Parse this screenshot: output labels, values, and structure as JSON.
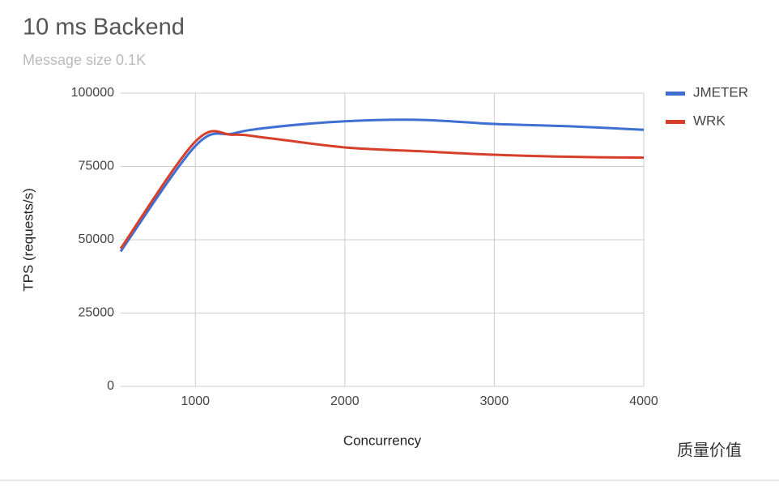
{
  "chart_data": {
    "type": "line",
    "title": "10 ms Backend",
    "subtitle": "Message size 0.1K",
    "x_label": "Concurrency",
    "y_label": "TPS (requests/s)",
    "x": [
      500,
      1000,
      1250,
      1500,
      2000,
      2500,
      3000,
      3500,
      4000
    ],
    "series": [
      {
        "name": "JMETER",
        "color": "#3f6fd1",
        "values": [
          46000,
          82000,
          86200,
          88300,
          90400,
          90900,
          89500,
          88700,
          87500
        ]
      },
      {
        "name": "WRK",
        "color": "#d6402b",
        "values": [
          47000,
          83500,
          85800,
          84600,
          81500,
          80200,
          79000,
          78300,
          78000
        ]
      }
    ],
    "xlim": [
      500,
      4000
    ],
    "xticks": [
      1000,
      2000,
      3000,
      4000
    ],
    "ylim": [
      0,
      100000
    ],
    "yticks": [
      0,
      25000,
      50000,
      75000,
      100000
    ],
    "grid": true,
    "legend": "right",
    "watermark": "质量价值"
  }
}
